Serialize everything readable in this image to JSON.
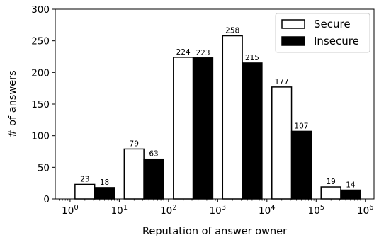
{
  "chart_data": {
    "type": "bar",
    "xlabel": "Reputation of answer owner",
    "ylabel": "# of answers",
    "ylim": [
      0,
      300
    ],
    "yticks": [
      0,
      50,
      100,
      150,
      200,
      250,
      300
    ],
    "x_scale": "log",
    "xlim": [
      0.5,
      1500000
    ],
    "xticks": [
      {
        "value": 1,
        "label_base": "10",
        "label_exp": "0"
      },
      {
        "value": 10,
        "label_base": "10",
        "label_exp": "1"
      },
      {
        "value": 100,
        "label_base": "10",
        "label_exp": "2"
      },
      {
        "value": 1000,
        "label_base": "10",
        "label_exp": "3"
      },
      {
        "value": 10000,
        "label_base": "10",
        "label_exp": "4"
      },
      {
        "value": 100000,
        "label_base": "10",
        "label_exp": "5"
      },
      {
        "value": 1000000,
        "label_base": "10",
        "label_exp": "6"
      }
    ],
    "bins": [
      [
        1,
        10
      ],
      [
        10,
        100
      ],
      [
        100,
        1000
      ],
      [
        1000,
        10000
      ],
      [
        10000,
        100000
      ],
      [
        100000,
        1000000
      ]
    ],
    "series": [
      {
        "name": "Secure",
        "fill": "#ffffff",
        "values": [
          23,
          79,
          224,
          258,
          177,
          19
        ]
      },
      {
        "name": "Insecure",
        "fill": "#000000",
        "values": [
          18,
          63,
          223,
          215,
          107,
          14
        ]
      }
    ],
    "legend_position": "top-right",
    "grid": false
  }
}
